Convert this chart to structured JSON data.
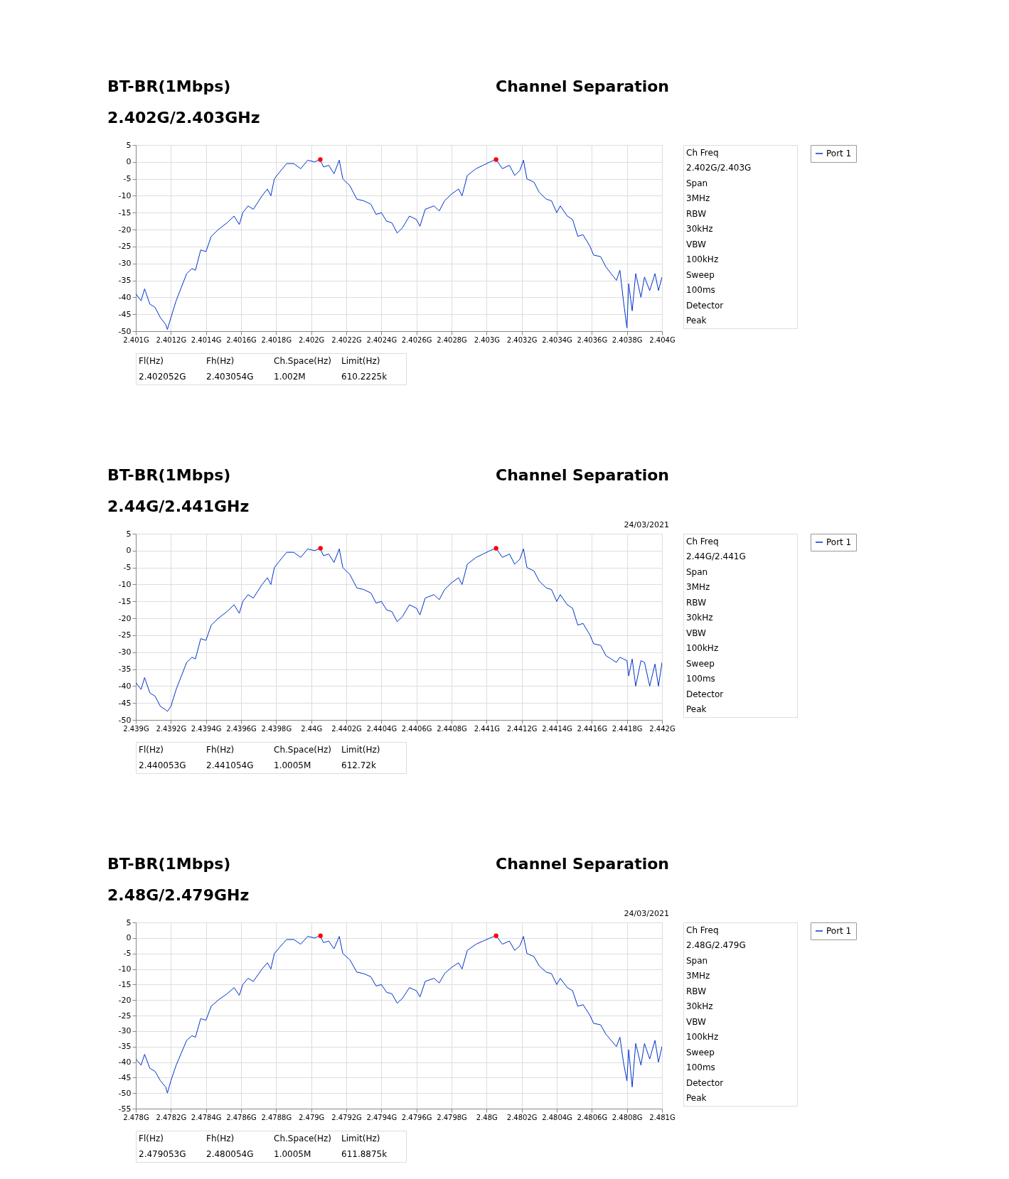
{
  "chart_data": [
    {
      "type": "line",
      "title": "BT-BR(1Mbps)",
      "subtitle": "2.402G/2.403GHz",
      "annotations": [
        "Channel Separation"
      ],
      "legend": "top right",
      "grid": true,
      "x": [
        2.401,
        2.40103,
        2.40105,
        2.40108,
        2.40111,
        2.40114,
        2.40117,
        2.40118,
        2.4012,
        2.40123,
        2.40126,
        2.40129,
        2.40132,
        2.40134,
        2.40137,
        2.4014,
        2.40143,
        2.40147,
        2.40152,
        2.40156,
        2.40159,
        2.40161,
        2.40164,
        2.40167,
        2.40172,
        2.40175,
        2.40177,
        2.40179,
        2.40182,
        2.40186,
        2.4019,
        2.40194,
        2.40198,
        2.40202,
        2.40205,
        2.40207,
        2.4021,
        2.40213,
        2.40216,
        2.40218,
        2.40222,
        2.40226,
        2.4023,
        2.40234,
        2.40237,
        2.4024,
        2.40243,
        2.40246,
        2.40249,
        2.40252,
        2.40256,
        2.4026,
        2.40262,
        2.40265,
        2.4027,
        2.40273,
        2.40276,
        2.4028,
        2.40284,
        2.40286,
        2.40289,
        2.40294,
        2.40298,
        2.40302,
        2.403054,
        2.40309,
        2.40313,
        2.40316,
        2.40319,
        2.40321,
        2.40323,
        2.40327,
        2.4033,
        2.40334,
        2.40337,
        2.4034,
        2.40342,
        2.40346,
        2.40349,
        2.40352,
        2.40355,
        2.40359,
        2.40361,
        2.40365,
        2.40368,
        2.40371,
        2.40374,
        2.40376,
        2.40378,
        2.4038,
        2.40381,
        2.40383,
        2.40385,
        2.40388,
        2.4039,
        2.40393,
        2.40396,
        2.40398,
        2.404
      ],
      "series": [
        {
          "name": "Port 1",
          "color": "#0033cc",
          "values": [
            -39,
            -41,
            -37.5,
            -42,
            -43,
            -46,
            -48,
            -49.5,
            -46,
            -41,
            -37,
            -33,
            -31.5,
            -32,
            -26,
            -26.5,
            -22,
            -20,
            -18,
            -16,
            -18.5,
            -15,
            -13,
            -14,
            -10,
            -8,
            -10,
            -5,
            -3,
            -0.5,
            -0.5,
            -2,
            0.5,
            0,
            0.7,
            -1.5,
            -1,
            -3.5,
            0.5,
            -5,
            -7,
            -11,
            -11.5,
            -12.5,
            -15.5,
            -15,
            -17.5,
            -18,
            -21,
            -19.5,
            -16,
            -17,
            -19,
            -14,
            -13,
            -14.5,
            -11.5,
            -9.5,
            -8,
            -10,
            -4,
            -2,
            -1,
            0,
            0.7,
            -2,
            -1,
            -4,
            -2.5,
            0.5,
            -5,
            -6,
            -9,
            -11,
            -11.5,
            -15,
            -13,
            -16,
            -17,
            -22,
            -21.5,
            -25,
            -27.5,
            -28,
            -31,
            -33,
            -35,
            -32,
            -41,
            -49,
            -36,
            -44,
            -33,
            -40,
            -34,
            -38,
            -33,
            -38,
            -34
          ]
        },
        {
          "type": "scatter",
          "color": "#ff0000",
          "x": [
            2.402052,
            2.403054
          ],
          "values": [
            0.7,
            0.7
          ]
        }
      ],
      "xlim": [
        2.401,
        2.404
      ],
      "xticks": [
        {
          "value": 2.401,
          "label": "2.401G"
        },
        {
          "value": 2.4012,
          "label": "2.4012G"
        },
        {
          "value": 2.4014,
          "label": "2.4014G"
        },
        {
          "value": 2.4016,
          "label": "2.4016G"
        },
        {
          "value": 2.4018,
          "label": "2.4018G"
        },
        {
          "value": 2.402,
          "label": "2.402G"
        },
        {
          "value": 2.4022,
          "label": "2.4022G"
        },
        {
          "value": 2.4024,
          "label": "2.4024G"
        },
        {
          "value": 2.4026,
          "label": "2.4026G"
        },
        {
          "value": 2.4028,
          "label": "2.4028G"
        },
        {
          "value": 2.403,
          "label": "2.403G"
        },
        {
          "value": 2.4032,
          "label": "2.4032G"
        },
        {
          "value": 2.4034,
          "label": "2.4034G"
        },
        {
          "value": 2.4036,
          "label": "2.4036G"
        },
        {
          "value": 2.4038,
          "label": "2.4038G"
        },
        {
          "value": 2.404,
          "label": "2.404G"
        }
      ],
      "ylim": [
        -50,
        5
      ],
      "yticks": [
        5,
        0,
        -5,
        -10,
        -15,
        -20,
        -25,
        -30,
        -35,
        -40,
        -45,
        -50
      ]
    },
    {
      "type": "other",
      "annotations": [
        "Ch Freq",
        "2.402G/2.403G",
        "Span",
        "3MHz",
        "RBW",
        "30kHz",
        "VBW",
        "100kHz",
        "Sweep",
        "100ms",
        "Detector",
        "Peak"
      ]
    },
    {
      "type": "other",
      "annotations": [
        "Fl(Hz)",
        "Fh(Hz)",
        "Ch.Space(Hz)",
        "Limit(Hz)",
        "2.402052G",
        "2.403054G",
        "1.002M",
        "610.2225k"
      ]
    },
    {
      "type": "line",
      "title": "BT-BR(1Mbps)",
      "subtitle": "2.44G/2.441GHz",
      "annotations": [
        "Channel Separation",
        "24/03/2021"
      ],
      "legend": "top right",
      "grid": true,
      "x": [
        2.439,
        2.43903,
        2.43905,
        2.43908,
        2.43911,
        2.43914,
        2.43917,
        2.43918,
        2.4392,
        2.43923,
        2.43926,
        2.43929,
        2.43932,
        2.43934,
        2.43937,
        2.4394,
        2.43943,
        2.43947,
        2.43952,
        2.43956,
        2.43959,
        2.43961,
        2.43964,
        2.43967,
        2.43972,
        2.43975,
        2.43977,
        2.43979,
        2.43982,
        2.43986,
        2.4399,
        2.43994,
        2.43998,
        2.44002,
        2.44005,
        2.44007,
        2.4401,
        2.44013,
        2.44016,
        2.44018,
        2.44022,
        2.44026,
        2.4403,
        2.44034,
        2.44037,
        2.4404,
        2.44043,
        2.44046,
        2.44049,
        2.44052,
        2.44056,
        2.4406,
        2.44062,
        2.44065,
        2.4407,
        2.44073,
        2.44076,
        2.4408,
        2.44084,
        2.44086,
        2.44089,
        2.44094,
        2.44098,
        2.44102,
        2.441054,
        2.44109,
        2.44113,
        2.44116,
        2.44119,
        2.44121,
        2.44123,
        2.44127,
        2.4413,
        2.44134,
        2.44137,
        2.4414,
        2.44142,
        2.44146,
        2.44149,
        2.44152,
        2.44155,
        2.44159,
        2.44161,
        2.44165,
        2.44168,
        2.44171,
        2.44174,
        2.44176,
        2.44178,
        2.4418,
        2.44181,
        2.44183,
        2.44185,
        2.44188,
        2.4419,
        2.44193,
        2.44196,
        2.44198,
        2.442
      ],
      "series": [
        {
          "name": "Port 1",
          "color": "#0033cc",
          "values": [
            -39,
            -41,
            -37.5,
            -42,
            -43,
            -46,
            -47,
            -47.5,
            -46,
            -41,
            -37,
            -33,
            -31.5,
            -32,
            -26,
            -26.5,
            -22,
            -20,
            -18,
            -16,
            -18.5,
            -15,
            -13,
            -14,
            -10,
            -8,
            -10,
            -5,
            -3,
            -0.5,
            -0.5,
            -2,
            0.5,
            0,
            0.7,
            -1.5,
            -1,
            -3.5,
            0.5,
            -5,
            -7,
            -11,
            -11.5,
            -12.5,
            -15.5,
            -15,
            -17.5,
            -18,
            -21,
            -19.5,
            -16,
            -17,
            -19,
            -14,
            -13,
            -14.5,
            -11.5,
            -9.5,
            -8,
            -10,
            -4,
            -2,
            -1,
            0,
            0.7,
            -2,
            -1,
            -4,
            -2.5,
            0.5,
            -5,
            -6,
            -9,
            -11,
            -11.5,
            -15,
            -13,
            -16,
            -17,
            -22,
            -21.5,
            -25,
            -27.5,
            -28,
            -31,
            -32,
            -33,
            -31.5,
            -32,
            -32.5,
            -37,
            -32,
            -40,
            -32.5,
            -33,
            -40,
            -33.5,
            -40,
            -33
          ]
        },
        {
          "type": "scatter",
          "color": "#ff0000",
          "x": [
            2.440053,
            2.441054
          ],
          "values": [
            0.7,
            0.7
          ]
        }
      ],
      "xlim": [
        2.439,
        2.442
      ],
      "xticks": [
        {
          "value": 2.439,
          "label": "2.439G"
        },
        {
          "value": 2.4392,
          "label": "2.4392G"
        },
        {
          "value": 2.4394,
          "label": "2.4394G"
        },
        {
          "value": 2.4396,
          "label": "2.4396G"
        },
        {
          "value": 2.4398,
          "label": "2.4398G"
        },
        {
          "value": 2.44,
          "label": "2.44G"
        },
        {
          "value": 2.4402,
          "label": "2.4402G"
        },
        {
          "value": 2.4404,
          "label": "2.4404G"
        },
        {
          "value": 2.4406,
          "label": "2.4406G"
        },
        {
          "value": 2.4408,
          "label": "2.4408G"
        },
        {
          "value": 2.441,
          "label": "2.441G"
        },
        {
          "value": 2.4412,
          "label": "2.4412G"
        },
        {
          "value": 2.4414,
          "label": "2.4414G"
        },
        {
          "value": 2.4416,
          "label": "2.4416G"
        },
        {
          "value": 2.4418,
          "label": "2.4418G"
        },
        {
          "value": 2.442,
          "label": "2.442G"
        }
      ],
      "ylim": [
        -50,
        5
      ],
      "yticks": [
        5,
        0,
        -5,
        -10,
        -15,
        -20,
        -25,
        -30,
        -35,
        -40,
        -45,
        -50
      ]
    },
    {
      "type": "other",
      "annotations": [
        "Ch Freq",
        "2.44G/2.441G",
        "Span",
        "3MHz",
        "RBW",
        "30kHz",
        "VBW",
        "100kHz",
        "Sweep",
        "100ms",
        "Detector",
        "Peak"
      ]
    },
    {
      "type": "other",
      "annotations": [
        "Fl(Hz)",
        "Fh(Hz)",
        "Ch.Space(Hz)",
        "Limit(Hz)",
        "2.440053G",
        "2.441054G",
        "1.0005M",
        "612.72k"
      ]
    },
    {
      "type": "line",
      "title": "BT-BR(1Mbps)",
      "subtitle": "2.48G/2.479GHz",
      "annotations": [
        "Channel Separation",
        "24/03/2021"
      ],
      "legend": "top right",
      "grid": true,
      "x": [
        2.478,
        2.47803,
        2.47805,
        2.47808,
        2.47811,
        2.47814,
        2.47817,
        2.47818,
        2.4782,
        2.47823,
        2.47826,
        2.47829,
        2.47832,
        2.47834,
        2.47837,
        2.4784,
        2.47843,
        2.47847,
        2.47852,
        2.47856,
        2.47859,
        2.47861,
        2.47864,
        2.47867,
        2.47872,
        2.47875,
        2.47877,
        2.47879,
        2.47882,
        2.47886,
        2.4789,
        2.47894,
        2.47898,
        2.47902,
        2.47905,
        2.47907,
        2.4791,
        2.47913,
        2.47916,
        2.47918,
        2.47922,
        2.47926,
        2.4793,
        2.47934,
        2.47937,
        2.4794,
        2.47943,
        2.47946,
        2.47949,
        2.47952,
        2.47956,
        2.4796,
        2.47962,
        2.47965,
        2.4797,
        2.47973,
        2.47976,
        2.4798,
        2.47984,
        2.47986,
        2.47989,
        2.47994,
        2.47998,
        2.48002,
        2.480054,
        2.48009,
        2.48013,
        2.48016,
        2.48019,
        2.48021,
        2.48023,
        2.48027,
        2.4803,
        2.48034,
        2.48037,
        2.4804,
        2.48042,
        2.48046,
        2.48049,
        2.48052,
        2.48055,
        2.48059,
        2.48061,
        2.48065,
        2.48068,
        2.48071,
        2.48074,
        2.48076,
        2.48078,
        2.4808,
        2.48081,
        2.48083,
        2.48085,
        2.48088,
        2.4809,
        2.48093,
        2.48096,
        2.48098,
        2.481
      ],
      "series": [
        {
          "name": "Port 1",
          "color": "#0033cc",
          "values": [
            -39,
            -41,
            -37.5,
            -42,
            -43,
            -46,
            -48,
            -50,
            -46,
            -41,
            -37,
            -33,
            -31.5,
            -32,
            -26,
            -26.5,
            -22,
            -20,
            -18,
            -16,
            -18.5,
            -15,
            -13,
            -14,
            -10,
            -8,
            -10,
            -5,
            -3,
            -0.5,
            -0.5,
            -2,
            0.5,
            0,
            0.7,
            -1.5,
            -1,
            -3.5,
            0.5,
            -5,
            -7,
            -11,
            -11.5,
            -12.5,
            -15.5,
            -15,
            -17.5,
            -18,
            -21,
            -19.5,
            -16,
            -17,
            -19,
            -14,
            -13,
            -14.5,
            -11.5,
            -9.5,
            -8,
            -10,
            -4,
            -2,
            -1,
            0,
            0.7,
            -2,
            -1,
            -4,
            -2.5,
            0.5,
            -5,
            -6,
            -9,
            -11,
            -11.5,
            -15,
            -13,
            -16,
            -17,
            -22,
            -21.5,
            -25,
            -27.5,
            -28,
            -31,
            -33,
            -35,
            -32,
            -40,
            -46,
            -36,
            -48,
            -34,
            -41,
            -34,
            -39,
            -33,
            -40,
            -35
          ]
        },
        {
          "type": "scatter",
          "color": "#ff0000",
          "x": [
            2.479053,
            2.480054
          ],
          "values": [
            0.7,
            0.7
          ]
        }
      ],
      "xlim": [
        2.478,
        2.481
      ],
      "xticks": [
        {
          "value": 2.478,
          "label": "2.478G"
        },
        {
          "value": 2.4782,
          "label": "2.4782G"
        },
        {
          "value": 2.4784,
          "label": "2.4784G"
        },
        {
          "value": 2.4786,
          "label": "2.4786G"
        },
        {
          "value": 2.4788,
          "label": "2.4788G"
        },
        {
          "value": 2.479,
          "label": "2.479G"
        },
        {
          "value": 2.4792,
          "label": "2.4792G"
        },
        {
          "value": 2.4794,
          "label": "2.4794G"
        },
        {
          "value": 2.4796,
          "label": "2.4796G"
        },
        {
          "value": 2.4798,
          "label": "2.4798G"
        },
        {
          "value": 2.48,
          "label": "2.48G"
        },
        {
          "value": 2.4802,
          "label": "2.4802G"
        },
        {
          "value": 2.4804,
          "label": "2.4804G"
        },
        {
          "value": 2.4806,
          "label": "2.4806G"
        },
        {
          "value": 2.4808,
          "label": "2.4808G"
        },
        {
          "value": 2.481,
          "label": "2.481G"
        }
      ],
      "ylim": [
        -55,
        5
      ],
      "yticks": [
        5,
        0,
        -5,
        -10,
        -15,
        -20,
        -25,
        -30,
        -35,
        -40,
        -45,
        -50,
        -55
      ]
    },
    {
      "type": "other",
      "annotations": [
        "Ch Freq",
        "2.48G/2.479G",
        "Span",
        "3MHz",
        "RBW",
        "30kHz",
        "VBW",
        "100kHz",
        "Sweep",
        "100ms",
        "Detector",
        "Peak"
      ]
    },
    {
      "type": "other",
      "annotations": [
        "Fl(Hz)",
        "Fh(Hz)",
        "Ch.Space(Hz)",
        "Limit(Hz)",
        "2.479053G",
        "2.480054G",
        "1.0005M",
        "611.8875k"
      ]
    }
  ]
}
